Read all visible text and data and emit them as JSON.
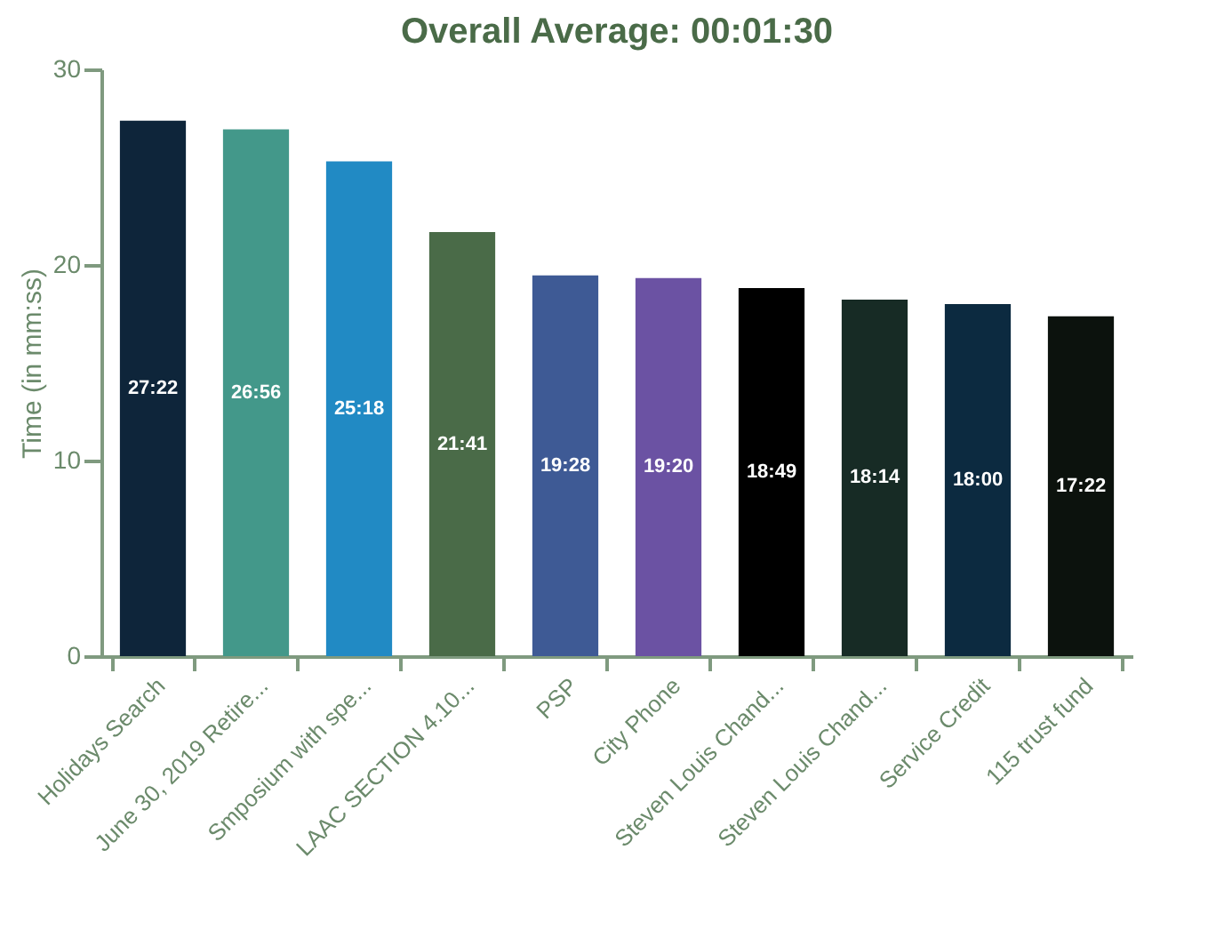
{
  "chart_data": {
    "type": "bar",
    "title": "Overall Average: 00:01:30",
    "ylabel": "Time (in mm:ss)",
    "categories": [
      "Holidays Search",
      "June 30, 2019 Retire...",
      "Smposium with spe...",
      "LAAC SECTION 4.10...",
      "PSP",
      "City Phone",
      "Steven Louis Chand...",
      "Steven Louis Chand...",
      "Service Credit",
      "115 trust fund"
    ],
    "values": [
      27.37,
      26.93,
      25.3,
      21.68,
      19.47,
      19.33,
      18.82,
      18.23,
      18.0,
      17.37
    ],
    "colors": [
      "#0e253a",
      "#43988a",
      "#218ac4",
      "#4a6b48",
      "#3e5a95",
      "#6b52a3",
      "#000000",
      "#172b25",
      "#0c2a40",
      "#0c120d"
    ],
    "value_labels": [
      "27:22",
      "26:56",
      "25:18",
      "21:41",
      "19:28",
      "19:20",
      "18:49",
      "18:14",
      "18:00",
      "17:22"
    ],
    "ylim": [
      0,
      30
    ],
    "yticks": [
      0,
      10,
      20,
      30
    ],
    "grid": false
  }
}
